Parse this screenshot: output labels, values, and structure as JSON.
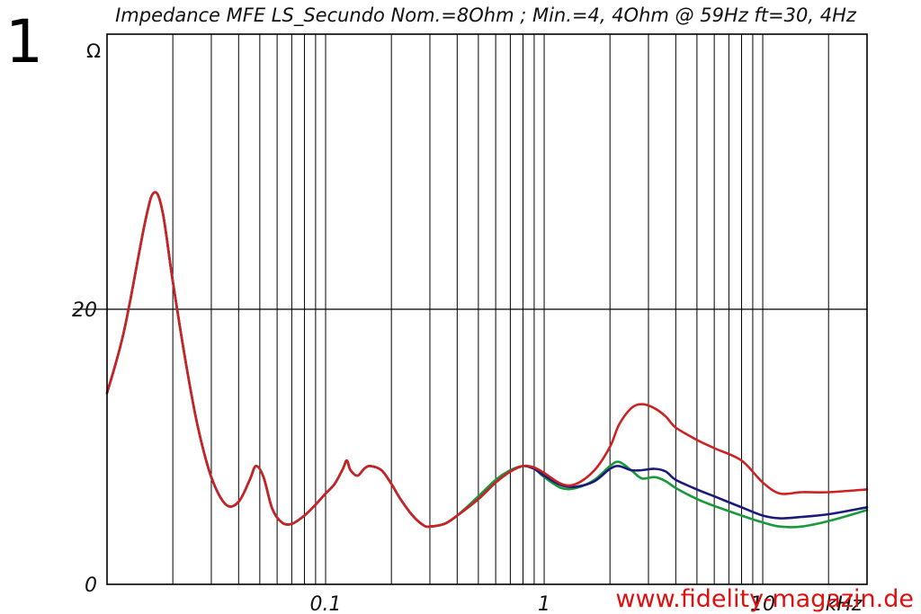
{
  "figure_label": "1",
  "watermark": "www.fidelity-magazin.de",
  "colors": {
    "red": "#cc2222",
    "blue": "#1a1a7a",
    "green": "#199a3a",
    "watermark": "#e01010",
    "grid": "#000000"
  },
  "chart_data": {
    "type": "line",
    "title": "Impedance MFE LS_Secundo Nom.=8Ohm ; Min.=4, 4Ohm @ 59Hz ft=30, 4Hz",
    "xlabel": "kHz",
    "ylabel": "Ω",
    "x_scale": "log",
    "xlim": [
      0.01,
      30
    ],
    "ylim": [
      0,
      40
    ],
    "x_tick_labels": [
      {
        "value": 0.1,
        "label": "0.1"
      },
      {
        "value": 1,
        "label": "1"
      },
      {
        "value": 10,
        "label": "10"
      }
    ],
    "y_tick_labels": [
      {
        "value": 0,
        "label": "0"
      },
      {
        "value": 20,
        "label": "20"
      }
    ],
    "grid": true,
    "series": [
      {
        "color": "#199a3a",
        "points": [
          [
            0.01,
            13.9
          ],
          [
            0.012,
            18.5
          ],
          [
            0.015,
            26.5
          ],
          [
            0.0165,
            28.5
          ],
          [
            0.018,
            27.0
          ],
          [
            0.02,
            22.0
          ],
          [
            0.023,
            16.0
          ],
          [
            0.026,
            11.5
          ],
          [
            0.03,
            7.8
          ],
          [
            0.035,
            5.8
          ],
          [
            0.04,
            6.0
          ],
          [
            0.045,
            7.6
          ],
          [
            0.048,
            8.6
          ],
          [
            0.052,
            7.8
          ],
          [
            0.057,
            5.5
          ],
          [
            0.063,
            4.5
          ],
          [
            0.07,
            4.4
          ],
          [
            0.08,
            5.0
          ],
          [
            0.09,
            5.8
          ],
          [
            0.1,
            6.6
          ],
          [
            0.11,
            7.3
          ],
          [
            0.12,
            8.4
          ],
          [
            0.125,
            9.0
          ],
          [
            0.13,
            8.3
          ],
          [
            0.14,
            7.9
          ],
          [
            0.15,
            8.4
          ],
          [
            0.16,
            8.6
          ],
          [
            0.18,
            8.3
          ],
          [
            0.2,
            7.3
          ],
          [
            0.22,
            6.2
          ],
          [
            0.25,
            5.0
          ],
          [
            0.28,
            4.3
          ],
          [
            0.3,
            4.2
          ],
          [
            0.35,
            4.4
          ],
          [
            0.4,
            5.0
          ],
          [
            0.5,
            6.4
          ],
          [
            0.6,
            7.6
          ],
          [
            0.7,
            8.3
          ],
          [
            0.8,
            8.6
          ],
          [
            0.9,
            8.4
          ],
          [
            1.0,
            7.8
          ],
          [
            1.2,
            7.0
          ],
          [
            1.4,
            7.0
          ],
          [
            1.7,
            7.6
          ],
          [
            2.0,
            8.6
          ],
          [
            2.2,
            8.9
          ],
          [
            2.5,
            8.3
          ],
          [
            2.8,
            7.7
          ],
          [
            3.2,
            7.8
          ],
          [
            3.6,
            7.5
          ],
          [
            4.0,
            7.0
          ],
          [
            5.0,
            6.2
          ],
          [
            6.0,
            5.7
          ],
          [
            8.0,
            5.0
          ],
          [
            10,
            4.5
          ],
          [
            12,
            4.2
          ],
          [
            15,
            4.2
          ],
          [
            20,
            4.6
          ],
          [
            30,
            5.4
          ]
        ]
      },
      {
        "color": "#1a1a7a",
        "points": [
          [
            0.01,
            13.9
          ],
          [
            0.012,
            18.5
          ],
          [
            0.015,
            26.5
          ],
          [
            0.0165,
            28.5
          ],
          [
            0.018,
            27.0
          ],
          [
            0.02,
            22.0
          ],
          [
            0.023,
            16.0
          ],
          [
            0.026,
            11.5
          ],
          [
            0.03,
            7.8
          ],
          [
            0.035,
            5.8
          ],
          [
            0.04,
            6.0
          ],
          [
            0.045,
            7.6
          ],
          [
            0.048,
            8.6
          ],
          [
            0.052,
            7.8
          ],
          [
            0.057,
            5.5
          ],
          [
            0.063,
            4.5
          ],
          [
            0.07,
            4.4
          ],
          [
            0.08,
            5.0
          ],
          [
            0.09,
            5.8
          ],
          [
            0.1,
            6.6
          ],
          [
            0.11,
            7.3
          ],
          [
            0.12,
            8.4
          ],
          [
            0.125,
            9.0
          ],
          [
            0.13,
            8.3
          ],
          [
            0.14,
            7.9
          ],
          [
            0.15,
            8.4
          ],
          [
            0.16,
            8.6
          ],
          [
            0.18,
            8.3
          ],
          [
            0.2,
            7.3
          ],
          [
            0.22,
            6.2
          ],
          [
            0.25,
            5.0
          ],
          [
            0.28,
            4.3
          ],
          [
            0.3,
            4.2
          ],
          [
            0.35,
            4.4
          ],
          [
            0.4,
            5.0
          ],
          [
            0.5,
            6.2
          ],
          [
            0.6,
            7.4
          ],
          [
            0.7,
            8.2
          ],
          [
            0.8,
            8.6
          ],
          [
            0.9,
            8.4
          ],
          [
            1.0,
            7.9
          ],
          [
            1.2,
            7.2
          ],
          [
            1.4,
            7.1
          ],
          [
            1.7,
            7.5
          ],
          [
            2.0,
            8.4
          ],
          [
            2.2,
            8.6
          ],
          [
            2.5,
            8.3
          ],
          [
            2.8,
            8.3
          ],
          [
            3.2,
            8.4
          ],
          [
            3.6,
            8.2
          ],
          [
            4.0,
            7.6
          ],
          [
            5.0,
            6.9
          ],
          [
            6.0,
            6.4
          ],
          [
            8.0,
            5.6
          ],
          [
            10,
            5.0
          ],
          [
            12,
            4.8
          ],
          [
            15,
            4.9
          ],
          [
            20,
            5.1
          ],
          [
            30,
            5.6
          ]
        ]
      },
      {
        "color": "#cc2222",
        "points": [
          [
            0.01,
            13.9
          ],
          [
            0.012,
            18.5
          ],
          [
            0.015,
            26.5
          ],
          [
            0.0165,
            28.5
          ],
          [
            0.018,
            27.0
          ],
          [
            0.02,
            22.0
          ],
          [
            0.023,
            16.0
          ],
          [
            0.026,
            11.5
          ],
          [
            0.03,
            7.8
          ],
          [
            0.035,
            5.8
          ],
          [
            0.04,
            6.0
          ],
          [
            0.045,
            7.6
          ],
          [
            0.048,
            8.6
          ],
          [
            0.052,
            7.8
          ],
          [
            0.057,
            5.5
          ],
          [
            0.063,
            4.5
          ],
          [
            0.07,
            4.4
          ],
          [
            0.08,
            5.0
          ],
          [
            0.09,
            5.8
          ],
          [
            0.1,
            6.6
          ],
          [
            0.11,
            7.3
          ],
          [
            0.12,
            8.4
          ],
          [
            0.125,
            9.0
          ],
          [
            0.13,
            8.3
          ],
          [
            0.14,
            7.9
          ],
          [
            0.15,
            8.4
          ],
          [
            0.16,
            8.6
          ],
          [
            0.18,
            8.3
          ],
          [
            0.2,
            7.3
          ],
          [
            0.22,
            6.2
          ],
          [
            0.25,
            5.0
          ],
          [
            0.28,
            4.3
          ],
          [
            0.3,
            4.2
          ],
          [
            0.35,
            4.4
          ],
          [
            0.4,
            5.0
          ],
          [
            0.5,
            6.2
          ],
          [
            0.6,
            7.4
          ],
          [
            0.7,
            8.2
          ],
          [
            0.8,
            8.6
          ],
          [
            0.9,
            8.5
          ],
          [
            1.0,
            8.1
          ],
          [
            1.2,
            7.3
          ],
          [
            1.4,
            7.3
          ],
          [
            1.7,
            8.3
          ],
          [
            2.0,
            10.0
          ],
          [
            2.2,
            11.6
          ],
          [
            2.5,
            12.8
          ],
          [
            2.8,
            13.1
          ],
          [
            3.2,
            12.8
          ],
          [
            3.6,
            12.2
          ],
          [
            4.0,
            11.4
          ],
          [
            5.0,
            10.5
          ],
          [
            6.0,
            9.9
          ],
          [
            8.0,
            9.0
          ],
          [
            10,
            7.4
          ],
          [
            12,
            6.6
          ],
          [
            15,
            6.7
          ],
          [
            20,
            6.7
          ],
          [
            30,
            6.9
          ]
        ]
      }
    ]
  }
}
